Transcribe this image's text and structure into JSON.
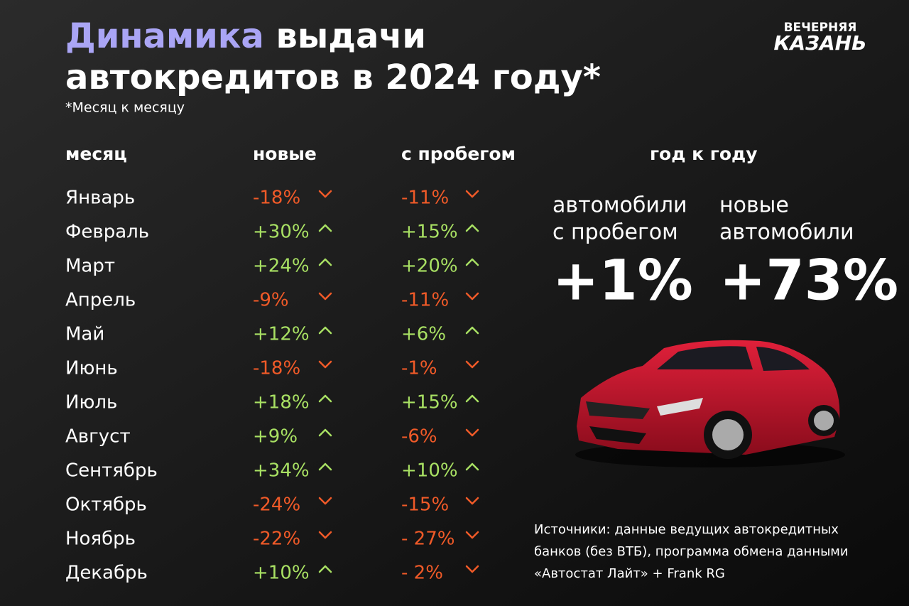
{
  "header": {
    "title_highlight": "Динамика",
    "title_rest": "выдачи",
    "title_line2": "автокредитов в 2024 году*",
    "note": "*Месяц к месяцу",
    "logo": [
      "ВЕЧЕРНЯЯ",
      "КАЗАНЬ"
    ]
  },
  "table": {
    "columns": [
      "месяц",
      "новые",
      "с пробегом"
    ],
    "rows": [
      [
        "Январь",
        "-18%",
        "-11%"
      ],
      [
        "Февраль",
        "+30%",
        "+15%"
      ],
      [
        "Март",
        "+24%",
        "+20%"
      ],
      [
        "Апрель",
        "-9%",
        "-11%"
      ],
      [
        "Май",
        "+12%",
        "+6%"
      ],
      [
        "Июнь",
        "-18%",
        "-1%"
      ],
      [
        "Июль",
        "+18%",
        "+15%"
      ],
      [
        "Август",
        "+9%",
        "-6%"
      ],
      [
        "Сентябрь",
        "+34%",
        "+10%"
      ],
      [
        "Октябрь",
        "-24%",
        "-15%"
      ],
      [
        "Ноябрь",
        "-22%",
        "- 27%"
      ],
      [
        "Декабрь",
        "+10%",
        "- 2%"
      ]
    ]
  },
  "yoy": {
    "heading": "год к году",
    "items": [
      {
        "label": [
          "автомобили",
          "с пробегом"
        ],
        "value": "+1%"
      },
      {
        "label": [
          "новые",
          "автомобили"
        ],
        "value": "+73%"
      }
    ]
  },
  "sources": [
    "Источники: данные ведущих автокредитных",
    "банков (без ВТБ), программа обмена данными",
    "«Автостат Лайт» + Frank RG"
  ]
}
